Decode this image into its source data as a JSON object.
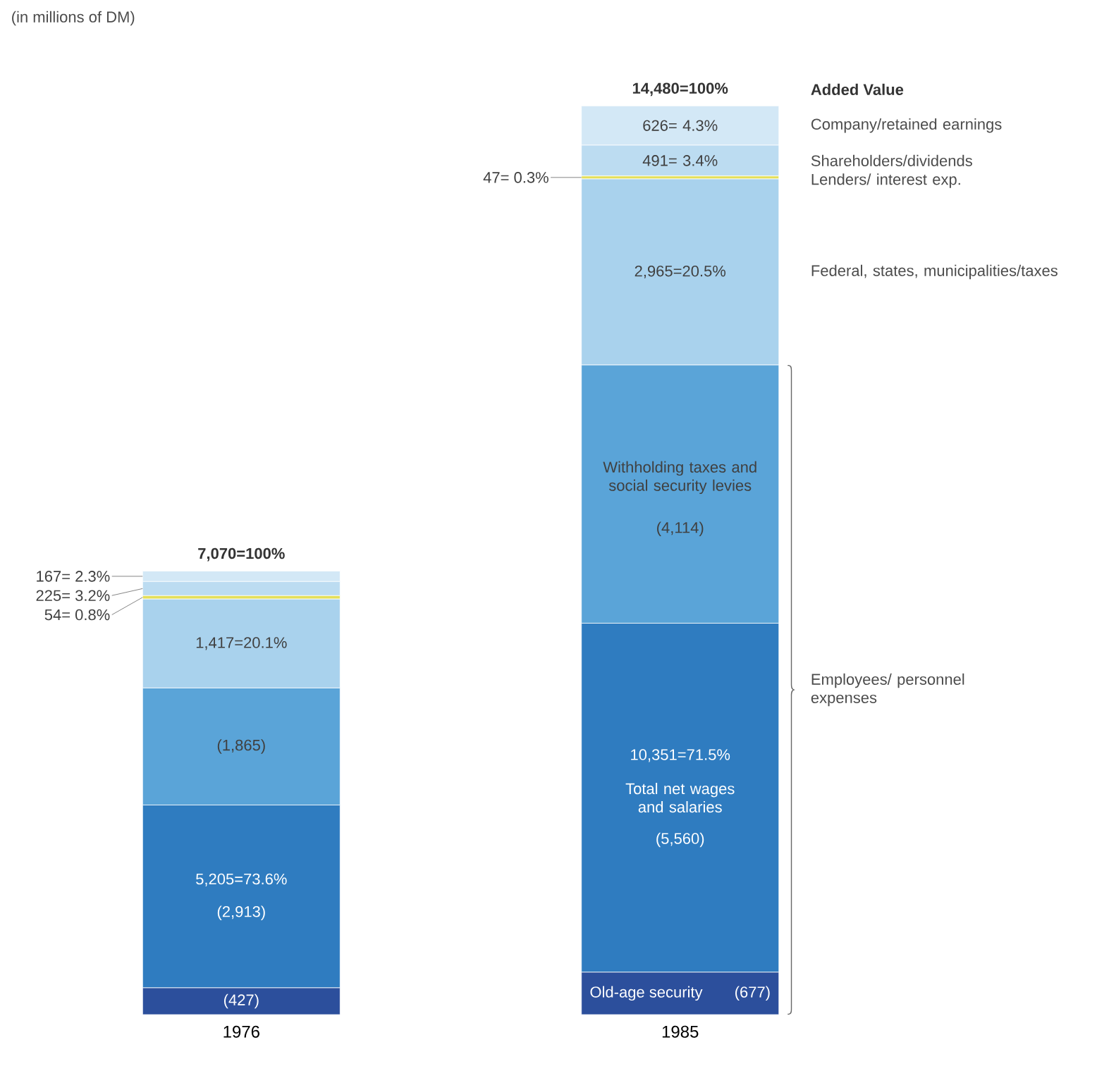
{
  "chart_data": {
    "type": "bar",
    "stacked": true,
    "subtitle": "(in millions of DM)",
    "legend_title": "Added Value",
    "categories": [
      "1976",
      "1985"
    ],
    "tick_labels": "x",
    "series": [
      {
        "name": "Old-age security",
        "color": "#2c4f9c",
        "values": [
          427,
          677
        ],
        "value_labels": [
          "(427)",
          "(677)"
        ]
      },
      {
        "name": "Total net wages and salaries",
        "color": "#2f7cc0",
        "values": [
          2913,
          5560
        ],
        "value_labels": [
          "(2,913)",
          "(5,560)"
        ]
      },
      {
        "name": "Withholding taxes and social security levies",
        "color": "#5aa4d8",
        "values": [
          1865,
          4114
        ],
        "value_labels": [
          "(1,865)",
          "(4,114)"
        ]
      },
      {
        "name": "Federal, states, municipalities/taxes",
        "color": "#a9d2ed",
        "values": [
          1417,
          2965
        ],
        "value_labels": [
          "1,417=20.1%",
          "2,965=20.5%"
        ]
      },
      {
        "name": "Lenders/ interest exp.",
        "color": "#e4df5c",
        "values": [
          54,
          47
        ],
        "value_labels": [
          "54= 0.8%",
          "47= 0.3%"
        ]
      },
      {
        "name": "Shareholders/dividends",
        "color": "#bcdcf1",
        "values": [
          225,
          491
        ],
        "value_labels": [
          "225= 3.2%",
          "491= 3.4%"
        ]
      },
      {
        "name": "Company/retained earnings",
        "color": "#d3e8f6",
        "values": [
          167,
          626
        ],
        "value_labels": [
          "167= 2.3%",
          "626= 4.3%"
        ]
      }
    ],
    "totals": [
      "7,070=100%",
      "14,480=100%"
    ],
    "annotations": [
      "5,205=73.6%",
      "10,351=71.5%",
      "Employees/ personnel expenses"
    ]
  }
}
